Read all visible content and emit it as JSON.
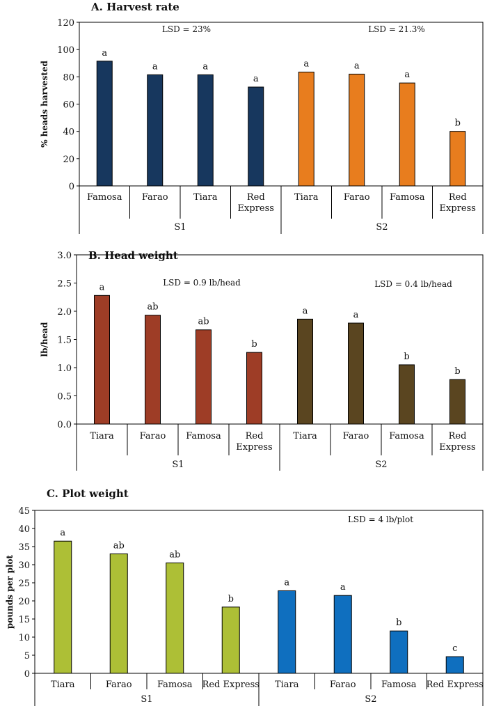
{
  "chart_data": [
    {
      "type": "bar",
      "title": "A. Harvest rate",
      "ylabel": "% heads harvested",
      "xlabel": "",
      "ylim": [
        0,
        120
      ],
      "yticks": [
        "0",
        "20",
        "40",
        "60",
        "80",
        "100",
        "120"
      ],
      "ytick_values": [
        0,
        20,
        40,
        60,
        80,
        100,
        120
      ],
      "groups": [
        {
          "name": "S1",
          "color": "#17375e",
          "lsd": "LSD = 23%",
          "categories": [
            [
              "Famosa"
            ],
            [
              "Farao"
            ],
            [
              "Tiara"
            ],
            [
              "Red",
              "Express"
            ]
          ],
          "values": [
            91.5,
            81.5,
            81.5,
            72.5
          ],
          "letters": [
            "a",
            "a",
            "a",
            "a"
          ]
        },
        {
          "name": "S2",
          "color": "#e87d1e",
          "lsd": "LSD = 21.3%",
          "categories": [
            [
              "Tiara"
            ],
            [
              "Farao"
            ],
            [
              "Famosa"
            ],
            [
              "Red",
              "Express"
            ]
          ],
          "values": [
            83.5,
            82,
            75.5,
            40
          ],
          "letters": [
            "a",
            "a",
            "a",
            "b"
          ]
        }
      ]
    },
    {
      "type": "bar",
      "title": "B. Head weight",
      "ylabel": "lb/head",
      "xlabel": "",
      "ylim": [
        0,
        3.0
      ],
      "yticks": [
        "0.0",
        "0.5",
        "1.0",
        "1.5",
        "2.0",
        "2.5",
        "3.0"
      ],
      "ytick_values": [
        0,
        0.5,
        1.0,
        1.5,
        2.0,
        2.5,
        3.0
      ],
      "groups": [
        {
          "name": "S1",
          "color": "#9e3d26",
          "lsd": "LSD = 0.9 lb/head",
          "categories": [
            [
              "Tiara"
            ],
            [
              "Farao"
            ],
            [
              "Famosa"
            ],
            [
              "Red",
              "Express"
            ]
          ],
          "values": [
            2.28,
            1.93,
            1.67,
            1.27
          ],
          "letters": [
            "a",
            "ab",
            "ab",
            "b"
          ]
        },
        {
          "name": "S2",
          "color": "#5a4520",
          "lsd": "LSD = 0.4 lb/head",
          "categories": [
            [
              "Tiara"
            ],
            [
              "Farao"
            ],
            [
              "Famosa"
            ],
            [
              "Red",
              "Express"
            ]
          ],
          "values": [
            1.86,
            1.79,
            1.05,
            0.79
          ],
          "letters": [
            "a",
            "a",
            "b",
            "b"
          ]
        }
      ]
    },
    {
      "type": "bar",
      "title": "C. Plot weight",
      "ylabel": "pounds per plot",
      "xlabel": "",
      "ylim": [
        0,
        45
      ],
      "yticks": [
        "0",
        "5",
        "10",
        "15",
        "20",
        "25",
        "30",
        "35",
        "40",
        "45"
      ],
      "ytick_values": [
        0,
        5,
        10,
        15,
        20,
        25,
        30,
        35,
        40,
        45
      ],
      "groups": [
        {
          "name": "S1",
          "color": "#adbf36",
          "lsd": "",
          "categories": [
            [
              "Tiara"
            ],
            [
              "Farao"
            ],
            [
              "Famosa"
            ],
            [
              "Red Express"
            ]
          ],
          "values": [
            36.5,
            33,
            30.5,
            18.3
          ],
          "letters": [
            "a",
            "ab",
            "ab",
            "b"
          ]
        },
        {
          "name": "S2",
          "color": "#0f6fbf",
          "lsd": "LSD = 4 lb/plot",
          "categories": [
            [
              "Tiara"
            ],
            [
              "Farao"
            ],
            [
              "Famosa"
            ],
            [
              "Red Express"
            ]
          ],
          "values": [
            22.8,
            21.5,
            11.7,
            4.6
          ],
          "letters": [
            "a",
            "a",
            "b",
            "c"
          ]
        }
      ]
    }
  ]
}
